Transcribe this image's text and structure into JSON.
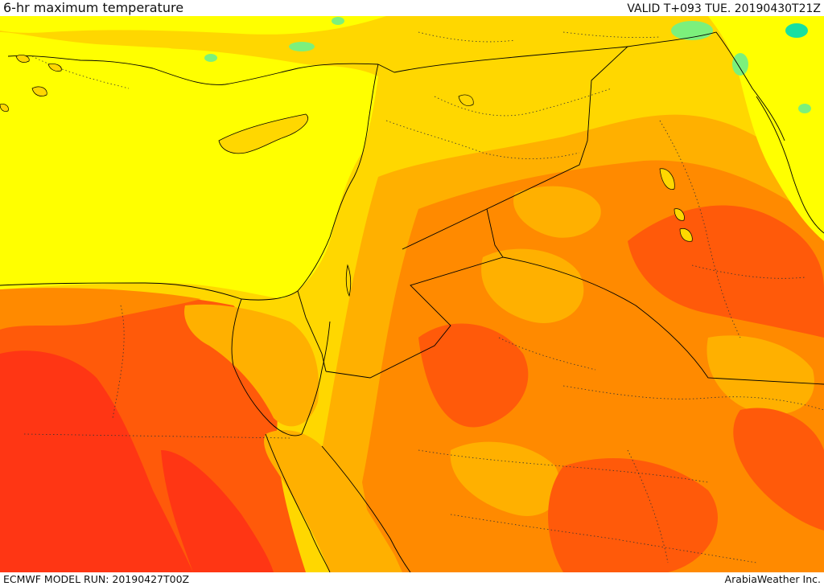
{
  "header": {
    "title": "6-hr maximum temperature",
    "valid": "VALID T+093 TUE. 20190430T21Z"
  },
  "footer": {
    "model_run": "ECMWF MODEL RUN: 20190427T00Z",
    "credit": "ArabiaWeather Inc."
  },
  "colors": {
    "sea_yellow": "#ffff00",
    "gold": "#ffd700",
    "amber": "#ffb000",
    "orange": "#ff8a00",
    "dark_orange": "#ff5a0a",
    "red_orange": "#ff3614",
    "light_green": "#7cf07c",
    "teal": "#18e0a0"
  }
}
